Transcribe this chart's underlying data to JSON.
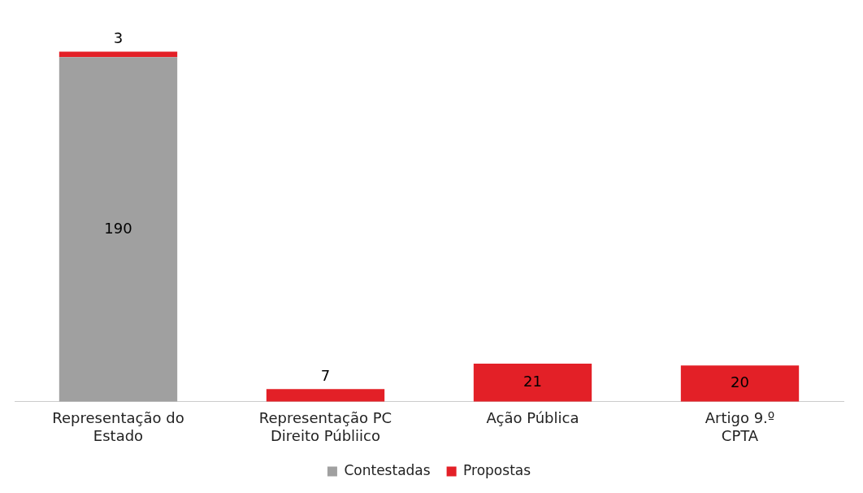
{
  "chart_data": {
    "type": "bar",
    "stacked": true,
    "categories": [
      "Representação do Estado",
      "Representação PC Direito Públiico",
      "Ação Pública",
      "Artigo 9.º CPTA"
    ],
    "series": [
      {
        "name": "Contestadas",
        "color": "#a0a0a0",
        "values": [
          190,
          null,
          null,
          null
        ],
        "value_labels": [
          "190",
          null,
          null,
          null
        ]
      },
      {
        "name": "Propostas",
        "color": "#e32027",
        "values": [
          3,
          7,
          21,
          20
        ],
        "value_labels": [
          "3",
          "7",
          "21",
          "20"
        ]
      }
    ],
    "legend": "bottom",
    "grid": false
  }
}
